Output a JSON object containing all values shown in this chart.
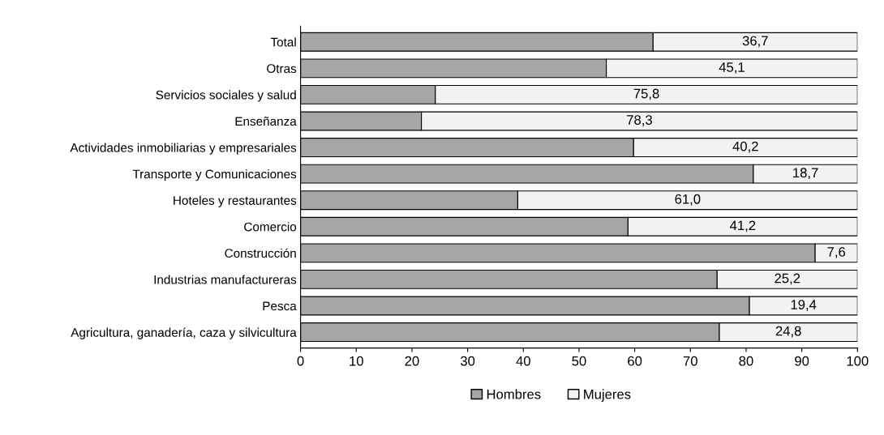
{
  "chart_data": {
    "type": "bar",
    "orientation": "horizontal",
    "stacked": true,
    "categories": [
      "Total",
      "Otras",
      "Servicios sociales y salud",
      "Enseñanza",
      "Actividades inmobiliarias y empresariales",
      "Transporte y Comunicaciones",
      "Hoteles y restaurantes",
      "Comercio",
      "Construcción",
      "Industrias manufactureras",
      "Pesca",
      "Agricultura, ganadería, caza y silvicultura"
    ],
    "series": [
      {
        "name": "Hombres",
        "color": "#a6a6a6",
        "values": [
          63.3,
          54.9,
          24.2,
          21.7,
          59.8,
          81.3,
          39.0,
          58.8,
          92.4,
          74.8,
          80.6,
          75.2
        ]
      },
      {
        "name": "Mujeres",
        "color": "#f2f2f2",
        "values": [
          36.7,
          45.1,
          75.8,
          78.3,
          40.2,
          18.7,
          61.0,
          41.2,
          7.6,
          25.2,
          19.4,
          24.8
        ],
        "value_labels": [
          "36,7",
          "45,1",
          "75,8",
          "78,3",
          "40,2",
          "18,7",
          "61,0",
          "41,2",
          "7,6",
          "25,2",
          "19,4",
          "24,8"
        ]
      }
    ],
    "xlim": [
      0,
      100
    ],
    "xticks": [
      0,
      10,
      20,
      30,
      40,
      50,
      60,
      70,
      80,
      90,
      100
    ],
    "grid": false,
    "legend": "bottom"
  }
}
